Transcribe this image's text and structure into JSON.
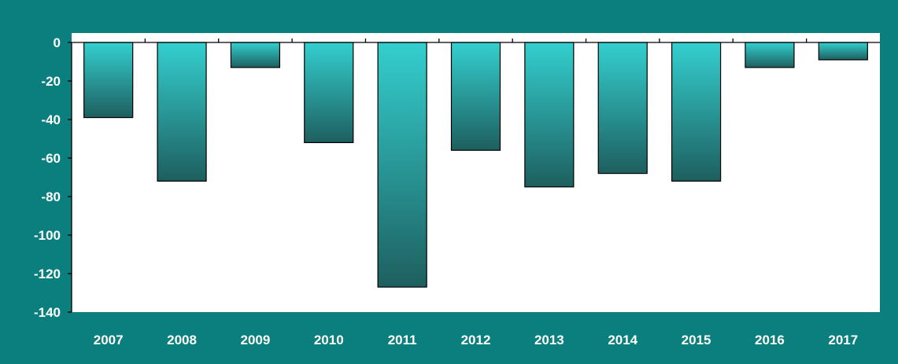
{
  "chart_data": {
    "type": "bar",
    "title": "",
    "xlabel": "",
    "ylabel": "",
    "categories": [
      "2007",
      "2008",
      "2009",
      "2010",
      "2011",
      "2012",
      "2013",
      "2014",
      "2015",
      "2016",
      "2017"
    ],
    "values": [
      -39,
      -72,
      -13,
      -52,
      -127,
      -56,
      -75,
      -68,
      -72,
      -13,
      -9
    ],
    "ylim": [
      -140,
      0
    ],
    "yticks": [
      "0",
      "-20",
      "-40",
      "-60",
      "-80",
      "-100",
      "-120",
      "-140"
    ],
    "grid": false,
    "legend": "none",
    "colors": {
      "background": "#0a7f7d",
      "plot_area": "#ffffff",
      "bar_top": "#34cfcf",
      "bar_bottom": "#1e5f5f",
      "bar_outline": "#000000",
      "text": "#ffffff"
    }
  }
}
